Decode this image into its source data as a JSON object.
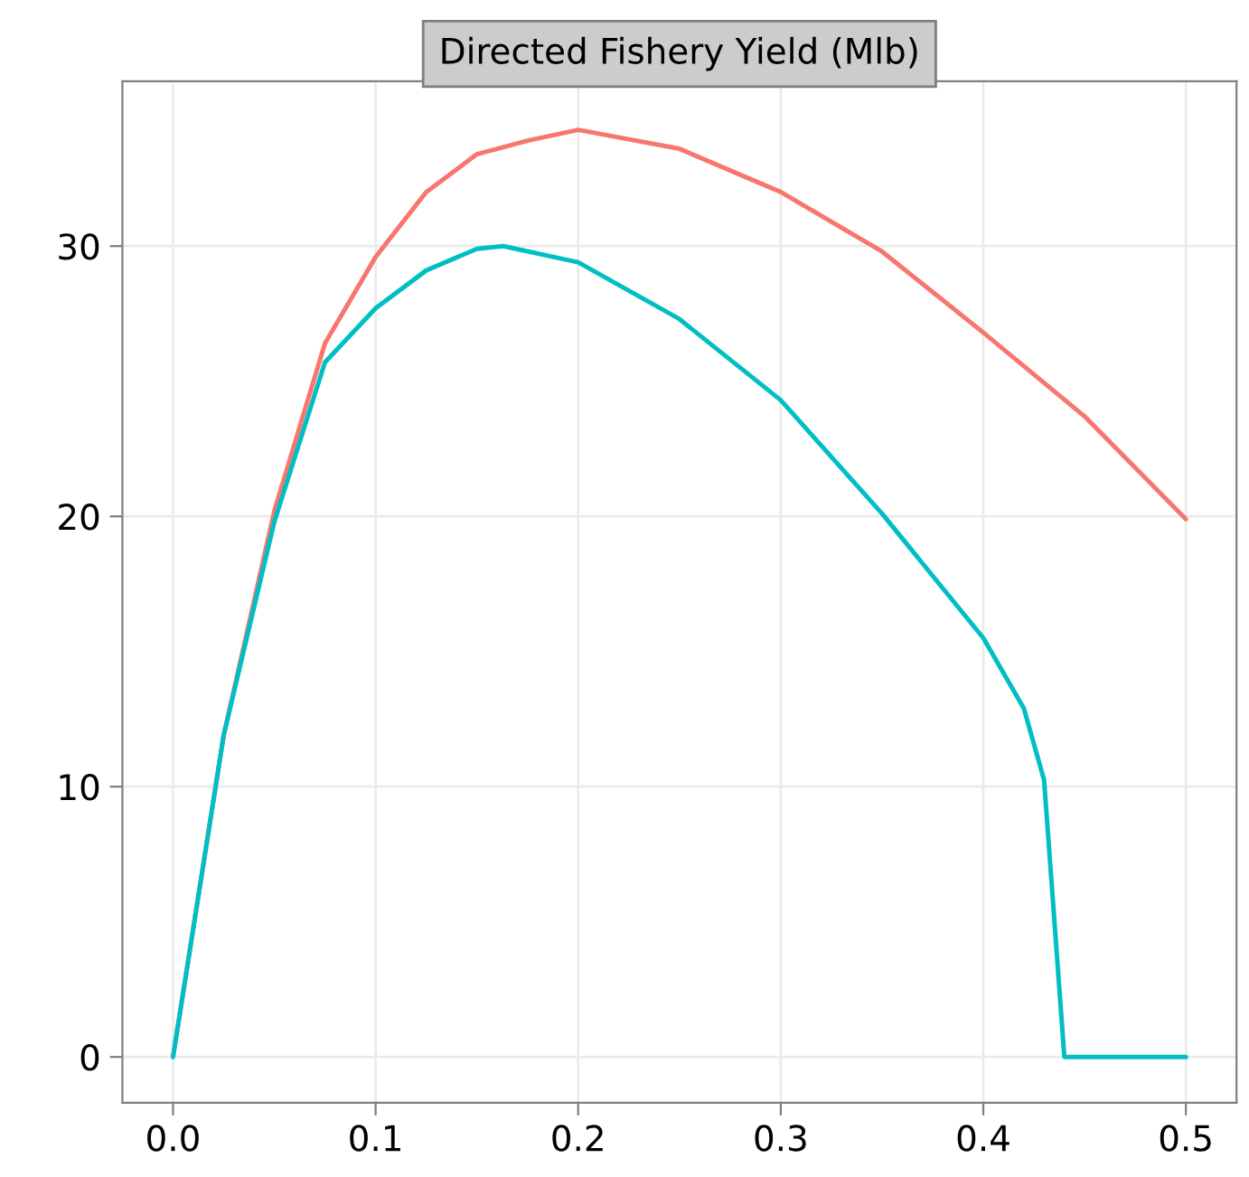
{
  "chart_data": {
    "type": "line",
    "title": "Directed Fishery Yield (Mlb)",
    "series": [
      {
        "color": "#f8766d",
        "x": [
          0,
          0.025,
          0.05,
          0.075,
          0.1,
          0.125,
          0.15,
          0.175,
          0.2,
          0.25,
          0.3,
          0.35,
          0.4,
          0.45,
          0.5
        ],
        "values": [
          0,
          11.9,
          20.2,
          26.4,
          29.6,
          32.0,
          33.4,
          33.9,
          34.3,
          33.6,
          32.0,
          29.8,
          26.8,
          23.7,
          19.9
        ]
      },
      {
        "color": "#00bfc4",
        "x": [
          0,
          0.025,
          0.05,
          0.075,
          0.1,
          0.125,
          0.15,
          0.163,
          0.2,
          0.25,
          0.3,
          0.35,
          0.4,
          0.42,
          0.43,
          0.44,
          0.5
        ],
        "values": [
          0,
          11.9,
          19.8,
          25.7,
          27.7,
          29.1,
          29.9,
          30.0,
          29.4,
          27.3,
          24.3,
          20.1,
          15.5,
          12.9,
          10.25,
          0,
          0
        ]
      }
    ],
    "xlim": [
      -0.025,
      0.525
    ],
    "ylim": [
      -1.7,
      36.1
    ],
    "xticks": [
      {
        "value": 0,
        "label": "0.0"
      },
      0.1,
      0.2,
      0.3,
      0.4,
      0.5
    ],
    "yticks": [
      0,
      10,
      20,
      30
    ],
    "grid": true
  }
}
